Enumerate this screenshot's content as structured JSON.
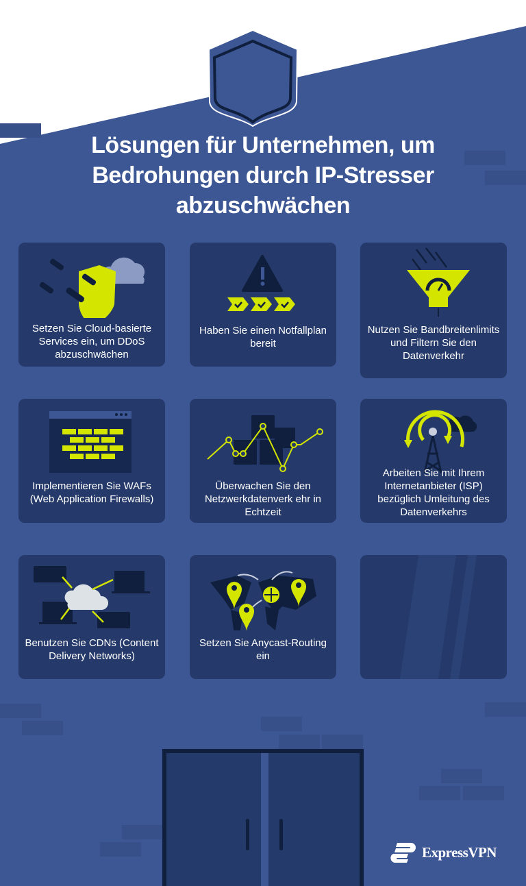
{
  "title": {
    "line1": "Lösungen für Unternehmen, um",
    "line2": "Bedrohungen durch IP-Stresser",
    "line3": "abzuschwächen"
  },
  "colors": {
    "background": "#3d5795",
    "card": "#253a6b",
    "accent": "#d4e600",
    "dark": "#0f1f3d"
  },
  "cards": [
    {
      "text": "Setzen Sie Cloud-basierte Services ein, um DDoS abzuschwächen",
      "icon": "shield-cloud-icon"
    },
    {
      "text": "Haben Sie einen Notfallplan bereit",
      "icon": "warning-checklist-icon"
    },
    {
      "text": "Nutzen Sie Bandbreitenlimits und Filtern Sie den Datenverkehr",
      "icon": "funnel-gauge-icon"
    },
    {
      "text": "Implementieren Sie WAFs (Web Application Firewalls)",
      "icon": "browser-firewall-icon"
    },
    {
      "text": "Überwachen Sie den Netzwerkdatenverk ehr in Echtzeit",
      "icon": "network-chart-icon"
    },
    {
      "text": "Arbeiten Sie mit Ihrem Internetanbieter (ISP) bezüglich Umleitung des Datenverkehrs",
      "icon": "antenna-tower-icon"
    },
    {
      "text": "Benutzen Sie CDNs (Content Delivery Networks)",
      "icon": "cloud-devices-icon"
    },
    {
      "text": "Setzen Sie Anycast-Routing ein",
      "icon": "world-map-pins-icon"
    }
  ],
  "logo": {
    "text": "ExpressVPN"
  }
}
